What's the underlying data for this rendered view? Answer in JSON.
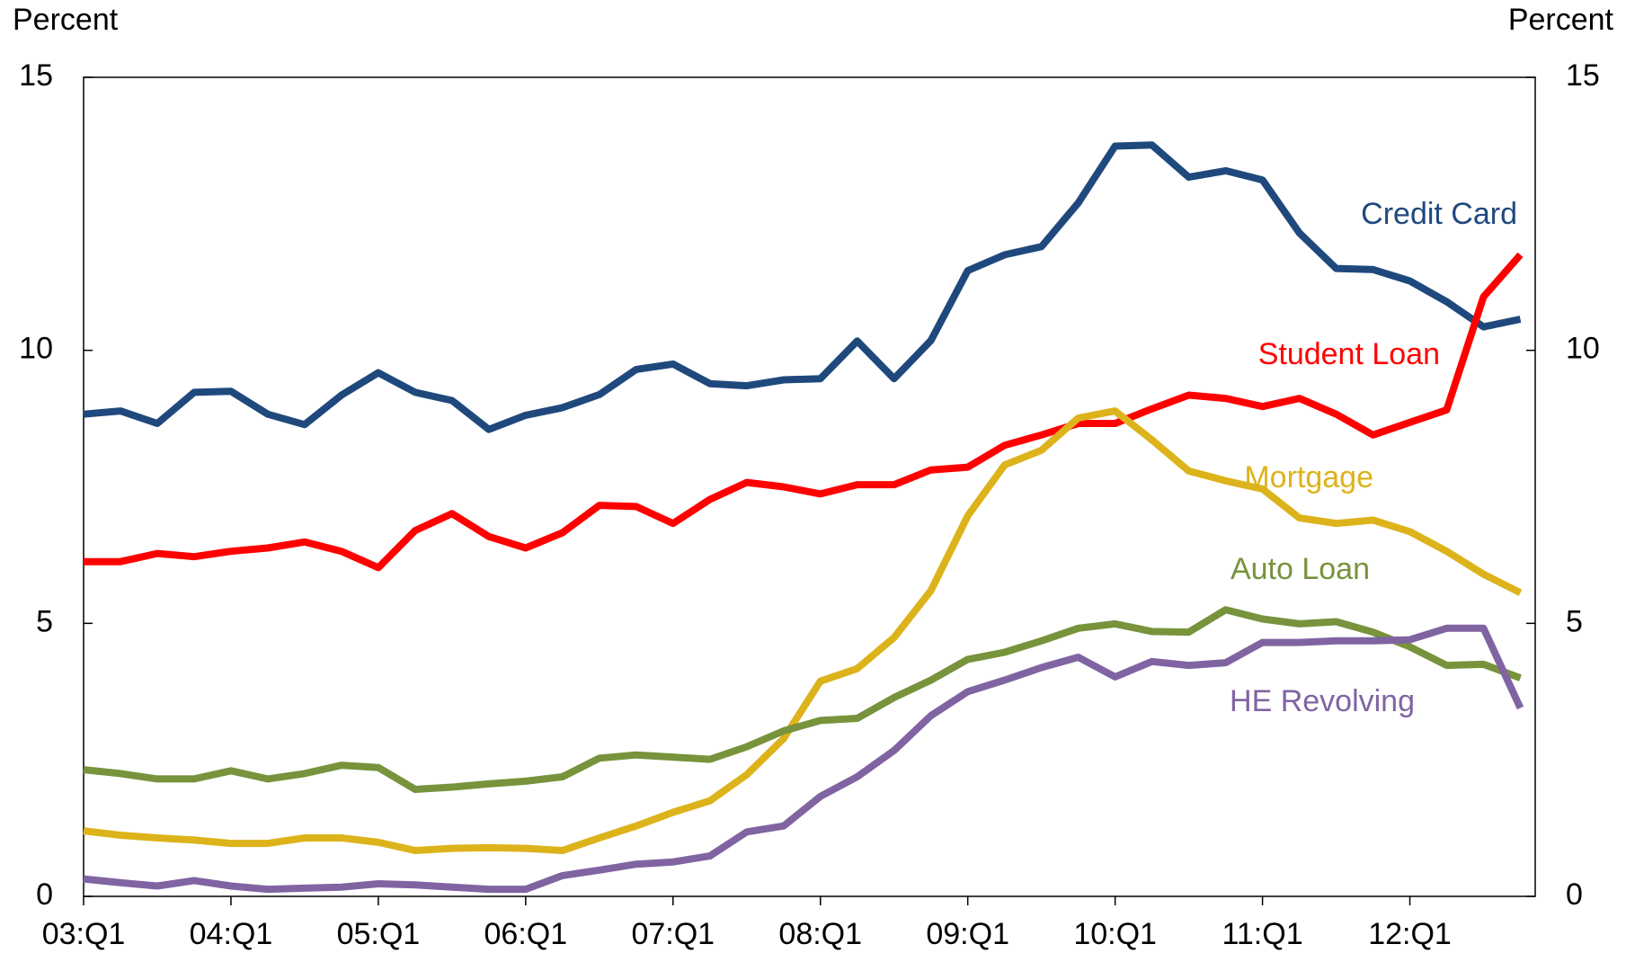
{
  "chart_data": {
    "type": "line",
    "y_label": "Percent",
    "y2_label": "Percent",
    "categories": [
      "03:Q1",
      null,
      null,
      null,
      "04:Q1",
      null,
      null,
      null,
      "05:Q1",
      null,
      null,
      null,
      "06:Q1",
      null,
      null,
      null,
      "07:Q1",
      null,
      null,
      null,
      "08:Q1",
      null,
      null,
      null,
      "09:Q1",
      null,
      null,
      null,
      "10:Q1",
      null,
      null,
      null,
      "11:Q1",
      null,
      null,
      null,
      "12:Q1",
      null,
      null,
      null
    ],
    "series": [
      {
        "name": "Credit Card",
        "color": "#1f497d",
        "values": [
          8.83,
          8.89,
          8.66,
          9.23,
          9.25,
          8.83,
          8.64,
          9.18,
          9.59,
          9.23,
          9.08,
          8.55,
          8.81,
          8.95,
          9.19,
          9.65,
          9.75,
          9.39,
          9.35,
          9.46,
          9.48,
          10.17,
          9.48,
          10.18,
          11.46,
          11.75,
          11.9,
          12.7,
          13.74,
          13.76,
          13.17,
          13.29,
          13.12,
          12.15,
          11.5,
          11.48,
          11.27,
          10.89,
          10.43,
          10.57
        ]
      },
      {
        "name": "Student Loan",
        "color": "#ff0000",
        "values": [
          6.13,
          6.13,
          6.28,
          6.22,
          6.32,
          6.38,
          6.49,
          6.32,
          6.02,
          6.7,
          7.01,
          6.59,
          6.38,
          6.66,
          7.16,
          7.14,
          6.83,
          7.27,
          7.58,
          7.5,
          7.37,
          7.54,
          7.54,
          7.81,
          7.86,
          8.26,
          8.45,
          8.66,
          8.66,
          8.93,
          9.18,
          9.12,
          8.97,
          9.12,
          8.83,
          8.45,
          8.68,
          8.91,
          10.98,
          11.75
        ]
      },
      {
        "name": "Mortgage",
        "color": "#ddb31b",
        "values": [
          1.2,
          1.12,
          1.07,
          1.03,
          0.97,
          0.97,
          1.07,
          1.07,
          0.99,
          0.84,
          0.88,
          0.89,
          0.88,
          0.84,
          1.07,
          1.29,
          1.54,
          1.75,
          2.23,
          2.89,
          3.94,
          4.17,
          4.74,
          5.6,
          6.97,
          7.9,
          8.17,
          8.76,
          8.89,
          8.36,
          7.79,
          7.61,
          7.46,
          6.93,
          6.83,
          6.89,
          6.68,
          6.32,
          5.9,
          5.56
        ]
      },
      {
        "name": "Auto Loan",
        "color": "#77933c",
        "values": [
          2.32,
          2.25,
          2.15,
          2.15,
          2.3,
          2.15,
          2.25,
          2.4,
          2.36,
          1.96,
          2.0,
          2.06,
          2.11,
          2.19,
          2.53,
          2.59,
          2.55,
          2.51,
          2.74,
          3.03,
          3.22,
          3.26,
          3.64,
          3.96,
          4.34,
          4.47,
          4.68,
          4.91,
          4.99,
          4.85,
          4.84,
          5.25,
          5.08,
          4.99,
          5.03,
          4.84,
          4.57,
          4.23,
          4.25,
          4.0
        ]
      },
      {
        "name": "HE Revolving",
        "color": "#8064a2",
        "values": [
          0.32,
          0.25,
          0.19,
          0.29,
          0.19,
          0.13,
          0.15,
          0.17,
          0.23,
          0.21,
          0.17,
          0.13,
          0.13,
          0.38,
          0.48,
          0.59,
          0.63,
          0.74,
          1.18,
          1.29,
          1.83,
          2.19,
          2.67,
          3.31,
          3.75,
          3.96,
          4.19,
          4.38,
          4.02,
          4.3,
          4.23,
          4.28,
          4.65,
          4.65,
          4.68,
          4.68,
          4.7,
          4.91,
          4.91,
          3.45
        ]
      }
    ],
    "ylim": [
      0,
      15
    ],
    "yticks": [
      0,
      5,
      10,
      15
    ],
    "y2lim": [
      0,
      15
    ],
    "y2ticks": [
      0,
      5,
      10,
      15
    ]
  }
}
